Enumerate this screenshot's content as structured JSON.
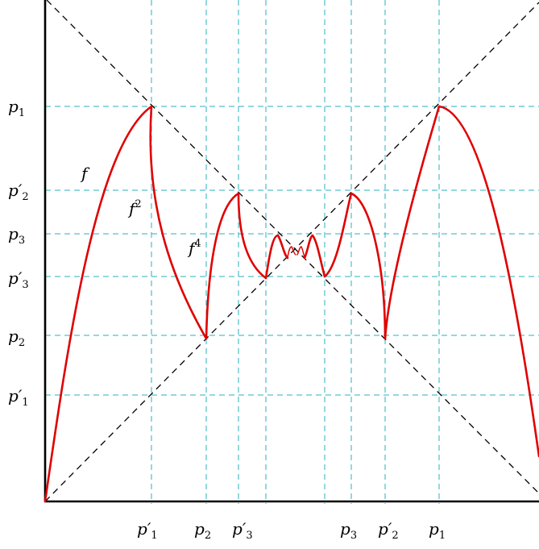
{
  "colors": {
    "curve": "#e00000",
    "guide": "#2ab2bd",
    "diagonal": "#000000",
    "axis": "#000000"
  },
  "y_labels": [
    {
      "base": "p",
      "prime": "",
      "sub": "1"
    },
    {
      "base": "p",
      "prime": "′",
      "sub": "2"
    },
    {
      "base": "p",
      "prime": "",
      "sub": "3"
    },
    {
      "base": "p",
      "prime": "′",
      "sub": "3"
    },
    {
      "base": "p",
      "prime": "",
      "sub": "2"
    },
    {
      "base": "p",
      "prime": "′",
      "sub": "1"
    }
  ],
  "x_labels": [
    {
      "base": "p",
      "prime": "′",
      "sub": "1"
    },
    {
      "base": "p",
      "prime": "",
      "sub": "2"
    },
    {
      "base": "p",
      "prime": "′",
      "sub": "3"
    },
    {
      "base": "p",
      "prime": "",
      "sub": "3"
    },
    {
      "base": "p",
      "prime": "′",
      "sub": "2"
    },
    {
      "base": "p",
      "prime": "",
      "sub": "1"
    }
  ],
  "curve_labels": [
    {
      "base": "f",
      "sup": ""
    },
    {
      "base": "f",
      "sup": "2"
    },
    {
      "base": "f",
      "sup": "4"
    }
  ]
}
